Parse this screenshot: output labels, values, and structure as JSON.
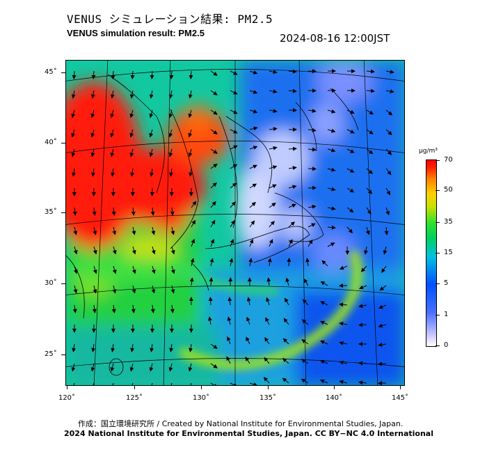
{
  "header": {
    "title_jp": "VENUS シミュレーション結果: PM2.5",
    "title_en": "VENUS simulation result: PM2.5",
    "timestamp": "2024-08-16 12:00JST"
  },
  "map": {
    "lat_labels": [
      "45˚",
      "40˚",
      "35˚",
      "30˚",
      "25˚"
    ],
    "lon_labels": [
      "120˚",
      "125˚",
      "130˚",
      "135˚",
      "140˚",
      "145˚"
    ],
    "region": "East Asia / Japan",
    "features": [
      "PM2.5 concentration field",
      "wind vectors",
      "coastlines",
      "graticule",
      "typhoon circulation east of Japan"
    ]
  },
  "legend": {
    "unit": "μg/m³",
    "labels": [
      "70",
      "50",
      "35",
      "15",
      "5",
      "1",
      "0"
    ],
    "colors": [
      "#ff0000",
      "#ff8000",
      "#ffd000",
      "#30e030",
      "#00c0e0",
      "#0050ff",
      "#c8c8ff",
      "#ffffff"
    ]
  },
  "footer": {
    "credit_line1": "作成：国立環境研究所 / Created by National Institute for Environmental Studies, Japan.",
    "credit_line2": "2024 National Institute for Environmental Studies, Japan. CC BY−NC 4.0 International"
  }
}
